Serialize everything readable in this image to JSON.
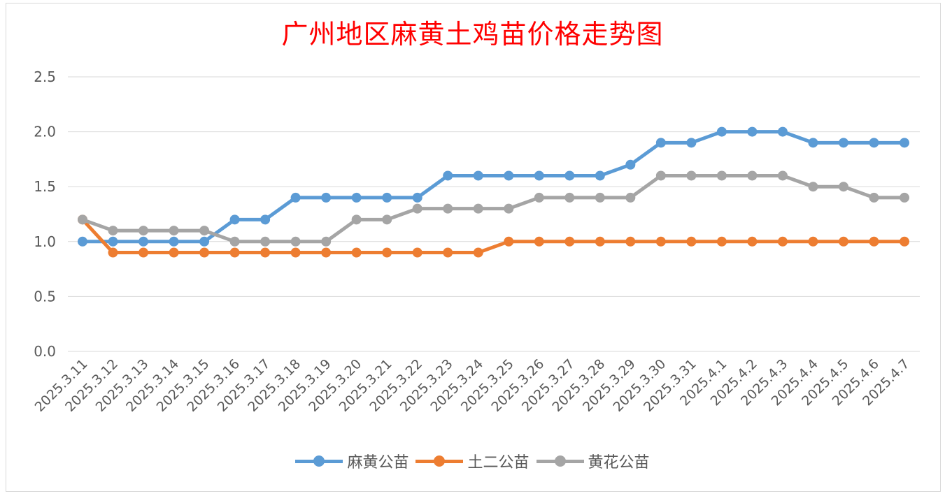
{
  "chart_data": {
    "type": "line",
    "title": "广州地区麻黄土鸡苗价格走势图",
    "title_color": "#ff0000",
    "ylim": [
      0,
      2.5
    ],
    "yticks": [
      "0.0",
      "0.5",
      "1.0",
      "1.5",
      "2.0",
      "2.5"
    ],
    "grid": true,
    "legend_position": "bottom",
    "categories": [
      "2025.3.11",
      "2025.3.12",
      "2025.3.13",
      "2025.3.14",
      "2025.3.15",
      "2025.3.16",
      "2025.3.17",
      "2025.3.18",
      "2025.3.19",
      "2025.3.20",
      "2025.3.21",
      "2025.3.22",
      "2025.3.23",
      "2025.3.24",
      "2025.3.25",
      "2025.3.26",
      "2025.3.27",
      "2025.3.28",
      "2025.3.29",
      "2025.3.30",
      "2025.3.31",
      "2025.4.1",
      "2025.4.2",
      "2025.4.3",
      "2025.4.4",
      "2025.4.5",
      "2025.4.6",
      "2025.4.7"
    ],
    "series": [
      {
        "name": "麻黄公苗",
        "color": "#5b9bd5",
        "values": [
          1.0,
          1.0,
          1.0,
          1.0,
          1.0,
          1.2,
          1.2,
          1.4,
          1.4,
          1.4,
          1.4,
          1.4,
          1.6,
          1.6,
          1.6,
          1.6,
          1.6,
          1.6,
          1.7,
          1.9,
          1.9,
          2.0,
          2.0,
          2.0,
          1.9,
          1.9,
          1.9,
          1.9
        ]
      },
      {
        "name": "土二公苗",
        "color": "#ed7d31",
        "values": [
          1.2,
          0.9,
          0.9,
          0.9,
          0.9,
          0.9,
          0.9,
          0.9,
          0.9,
          0.9,
          0.9,
          0.9,
          0.9,
          0.9,
          1.0,
          1.0,
          1.0,
          1.0,
          1.0,
          1.0,
          1.0,
          1.0,
          1.0,
          1.0,
          1.0,
          1.0,
          1.0,
          1.0
        ]
      },
      {
        "name": "黄花公苗",
        "color": "#a5a5a5",
        "values": [
          1.2,
          1.1,
          1.1,
          1.1,
          1.1,
          1.0,
          1.0,
          1.0,
          1.0,
          1.2,
          1.2,
          1.3,
          1.3,
          1.3,
          1.3,
          1.4,
          1.4,
          1.4,
          1.4,
          1.6,
          1.6,
          1.6,
          1.6,
          1.6,
          1.5,
          1.5,
          1.4,
          1.4
        ]
      }
    ]
  }
}
